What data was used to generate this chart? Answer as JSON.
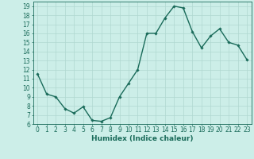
{
  "x": [
    0,
    1,
    2,
    3,
    4,
    5,
    6,
    7,
    8,
    9,
    10,
    11,
    12,
    13,
    14,
    15,
    16,
    17,
    18,
    19,
    20,
    21,
    22,
    23
  ],
  "y": [
    11.5,
    9.3,
    9.0,
    7.7,
    7.2,
    7.9,
    6.4,
    6.3,
    6.7,
    9.0,
    10.5,
    12.0,
    16.0,
    16.0,
    17.7,
    19.0,
    18.8,
    16.2,
    14.4,
    15.7,
    16.5,
    15.0,
    14.7,
    13.1
  ],
  "line_color": "#1a6b5a",
  "marker": "D",
  "marker_size": 1.8,
  "bg_color": "#cceee8",
  "grid_color": "#b0d8d0",
  "xlabel": "Humidex (Indice chaleur)",
  "ylim": [
    6,
    19.5
  ],
  "xlim": [
    -0.5,
    23.5
  ],
  "yticks": [
    6,
    7,
    8,
    9,
    10,
    11,
    12,
    13,
    14,
    15,
    16,
    17,
    18,
    19
  ],
  "xticks": [
    0,
    1,
    2,
    3,
    4,
    5,
    6,
    7,
    8,
    9,
    10,
    11,
    12,
    13,
    14,
    15,
    16,
    17,
    18,
    19,
    20,
    21,
    22,
    23
  ],
  "xlabel_fontsize": 6.5,
  "tick_fontsize": 5.5,
  "line_width": 1.0
}
